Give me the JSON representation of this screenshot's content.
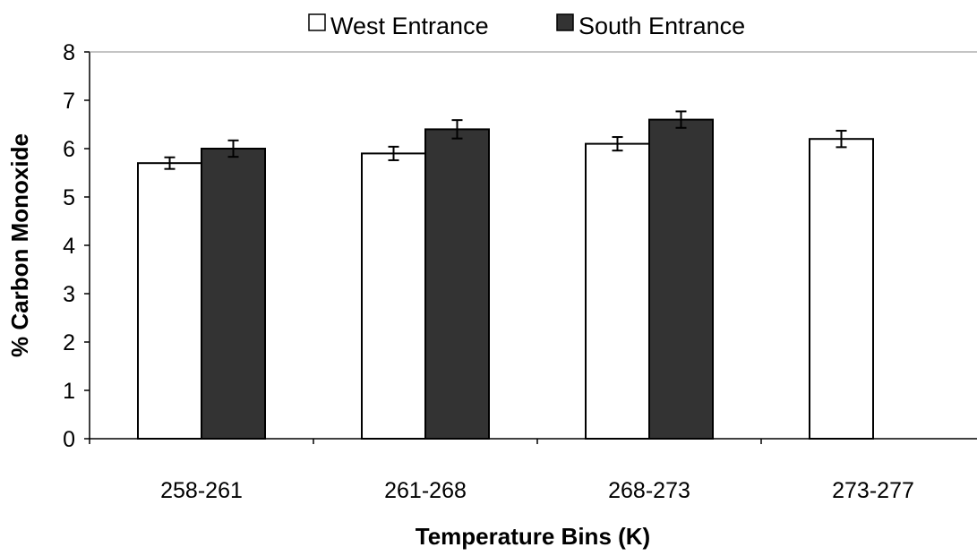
{
  "chart_data": {
    "type": "bar",
    "title": "",
    "xlabel": "Temperature Bins (K)",
    "ylabel": "% Carbon Monoxide",
    "categories": [
      "258-261",
      "261-268",
      "268-273",
      "273-277"
    ],
    "ylim": [
      0,
      8
    ],
    "yticks": [
      "0",
      "1",
      "2",
      "3",
      "4",
      "5",
      "6",
      "7",
      "8"
    ],
    "grid": false,
    "legend_position": "top-center",
    "series": [
      {
        "name": "West Entrance",
        "values": [
          5.7,
          5.9,
          6.1,
          6.2
        ],
        "errors": [
          0.12,
          0.14,
          0.14,
          0.17
        ],
        "color": "#ffffff"
      },
      {
        "name": "South Entrance",
        "values": [
          6.0,
          6.4,
          6.6,
          null
        ],
        "errors": [
          0.17,
          0.19,
          0.17,
          null
        ],
        "color": "#333333"
      }
    ]
  }
}
